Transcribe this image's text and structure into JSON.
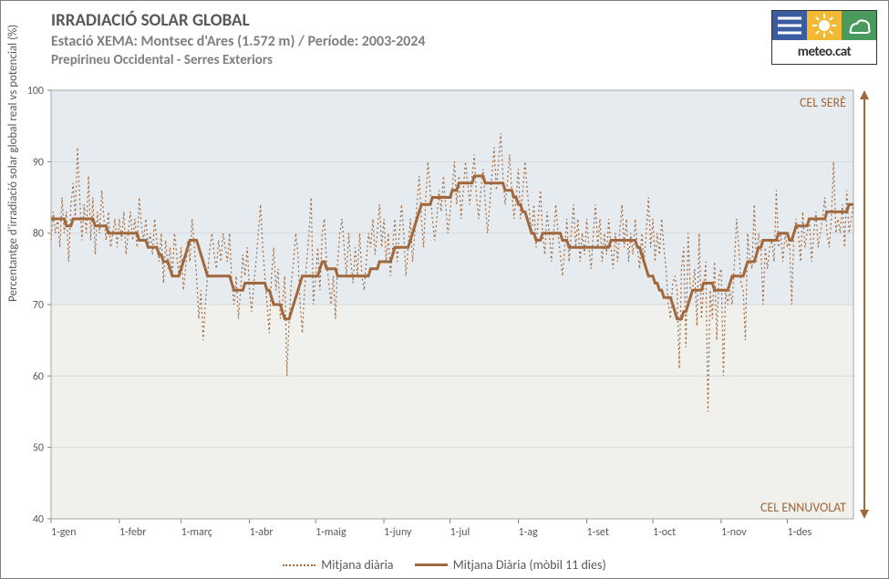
{
  "header": {
    "title": "IRRADIACIÓ SOLAR GLOBAL",
    "subtitle": "Estació XEMA: Montsec d'Ares (1.572 m) /  Període: 2003-2024",
    "subtitle2": "Prepirineu Occidental - Serres Exteriors"
  },
  "logo": {
    "text": "meteo.cat",
    "colors": [
      "#3b5ca0",
      "#f4b934",
      "#4a9a5e"
    ]
  },
  "chart": {
    "type": "line",
    "y_axis": {
      "label": "Percentantge d'irradiació solar global real vs potencial (%)",
      "min": 40,
      "max": 100,
      "tick_step": 10,
      "label_fontsize": 13,
      "tick_fontsize": 12,
      "tick_color": "#595959"
    },
    "x_axis": {
      "ticks": [
        "1-gen",
        "1-febr",
        "1-març",
        "1-abr",
        "1-maig",
        "1-juny",
        "1-jul",
        "1-ag",
        "1-set",
        "1-oct",
        "1-nov",
        "1-des"
      ],
      "tick_fontsize": 12,
      "tick_color": "#595959"
    },
    "plot": {
      "background_upper": "#e6ebf0",
      "background_lower": "#f0f0ec",
      "split_y": 70,
      "border_color": "#a6a6a6",
      "grid_color": "#d9d9d9"
    },
    "annotations": {
      "top_right": "CEL SERÈ",
      "bottom_right": "CEL ENNUVOLAT",
      "color": "#a0683c"
    },
    "arrow": {
      "color": "#a0683c",
      "width": 2
    },
    "series": [
      {
        "name": "Mitjana diària",
        "style": "dotted",
        "color": "#a0683c",
        "line_width": 1.2,
        "data": [
          79,
          83,
          80,
          82,
          78,
          85,
          80,
          83,
          76,
          84,
          87,
          82,
          92,
          85,
          79,
          84,
          80,
          88,
          79,
          85,
          77,
          83,
          80,
          86,
          82,
          79,
          83,
          78,
          80,
          82,
          78,
          82,
          79,
          83,
          77,
          80,
          83,
          79,
          82,
          78,
          85,
          81,
          79,
          82,
          78,
          80,
          77,
          82,
          79,
          76,
          80,
          73,
          79,
          75,
          78,
          74,
          80,
          77,
          74,
          78,
          72,
          75,
          79,
          76,
          82,
          78,
          74,
          68,
          72,
          65,
          70,
          74,
          78,
          80,
          77,
          75,
          79,
          76,
          80,
          78,
          76,
          80,
          73,
          70,
          74,
          68,
          72,
          77,
          74,
          78,
          72,
          69,
          73,
          76,
          80,
          84,
          78,
          74,
          70,
          66,
          74,
          78,
          72,
          75,
          68,
          70,
          74,
          60,
          68,
          73,
          76,
          80,
          77,
          70,
          66,
          72,
          76,
          80,
          85,
          70,
          74,
          78,
          72,
          80,
          82,
          76,
          73,
          70,
          74,
          68,
          76,
          80,
          82,
          78,
          74,
          80,
          76,
          73,
          78,
          74,
          80,
          74,
          72,
          76,
          80,
          78,
          82,
          77,
          80,
          84,
          78,
          82,
          76,
          80,
          74,
          78,
          82,
          76,
          80,
          84,
          80,
          74,
          78,
          82,
          76,
          80,
          84,
          88,
          82,
          78,
          85,
          90,
          86,
          82,
          79,
          82,
          86,
          83,
          88,
          84,
          80,
          83,
          86,
          90,
          84,
          88,
          82,
          86,
          90,
          87,
          84,
          88,
          91,
          85,
          82,
          86,
          89,
          84,
          80,
          84,
          88,
          92,
          86,
          90,
          94,
          88,
          84,
          87,
          91,
          86,
          82,
          85,
          89,
          82,
          86,
          90,
          86,
          83,
          80,
          84,
          78,
          82,
          86,
          80,
          77,
          83,
          80,
          76,
          80,
          84,
          80,
          77,
          74,
          78,
          82,
          76,
          80,
          84,
          78,
          82,
          76,
          80,
          77,
          82,
          78,
          75,
          80,
          84,
          78,
          82,
          76,
          80,
          77,
          82,
          78,
          75,
          80,
          76,
          80,
          84,
          78,
          82,
          76,
          80,
          77,
          82,
          78,
          75,
          80,
          76,
          80,
          85,
          78,
          82,
          76,
          80,
          77,
          82,
          78,
          75,
          70,
          68,
          73,
          74,
          72,
          61,
          75,
          78,
          64,
          80,
          72,
          72,
          75,
          67,
          80,
          68,
          72,
          76,
          55,
          72,
          68,
          76,
          65,
          74,
          75,
          60,
          72,
          70,
          72,
          70,
          76,
          82,
          78,
          73,
          72,
          65,
          80,
          76,
          75,
          84,
          76,
          80,
          78,
          70,
          78,
          75,
          78,
          79,
          76,
          86,
          78,
          80,
          76,
          80,
          78,
          79,
          70,
          80,
          82,
          80,
          76,
          83,
          78,
          80,
          82,
          76,
          80,
          83,
          78,
          80,
          82,
          85,
          80,
          78,
          82,
          90,
          80,
          82,
          80,
          84,
          78,
          86,
          80,
          82,
          84
        ]
      },
      {
        "name": "Mitjana Diària (mòbil 11 dies)",
        "style": "solid",
        "color": "#a0683c",
        "line_width": 3,
        "data": [
          82,
          82,
          82,
          82,
          82,
          82,
          82,
          81,
          81,
          81,
          82,
          82,
          82,
          82,
          82,
          82,
          82,
          82,
          82,
          82,
          81,
          81,
          81,
          81,
          81,
          81,
          80,
          80,
          80,
          80,
          80,
          80,
          80,
          80,
          80,
          80,
          80,
          80,
          80,
          80,
          79,
          79,
          79,
          79,
          78,
          78,
          78,
          78,
          78,
          77,
          77,
          76,
          76,
          76,
          75,
          74,
          74,
          74,
          74,
          75,
          76,
          77,
          78,
          79,
          79,
          79,
          79,
          78,
          77,
          76,
          75,
          74,
          74,
          74,
          74,
          74,
          74,
          74,
          74,
          74,
          74,
          74,
          73,
          72,
          72,
          72,
          72,
          72,
          73,
          73,
          73,
          73,
          73,
          73,
          73,
          73,
          73,
          73,
          72,
          72,
          71,
          70,
          70,
          70,
          70,
          69,
          68,
          68,
          68,
          69,
          70,
          71,
          72,
          73,
          74,
          74,
          74,
          74,
          74,
          74,
          74,
          74,
          75,
          76,
          76,
          75,
          75,
          75,
          75,
          75,
          74,
          74,
          74,
          74,
          74,
          74,
          74,
          74,
          74,
          74,
          74,
          74,
          74,
          74,
          74,
          75,
          75,
          75,
          75,
          76,
          76,
          76,
          76,
          76,
          76,
          77,
          78,
          78,
          78,
          78,
          78,
          78,
          78,
          79,
          80,
          81,
          82,
          83,
          84,
          84,
          84,
          84,
          84,
          85,
          85,
          85,
          85,
          85,
          85,
          85,
          85,
          85,
          86,
          86,
          86,
          87,
          87,
          87,
          87,
          87,
          87,
          87,
          88,
          88,
          88,
          88,
          88,
          87,
          87,
          87,
          87,
          87,
          87,
          87,
          87,
          87,
          86,
          86,
          86,
          86,
          85,
          85,
          84,
          84,
          83,
          83,
          82,
          81,
          80,
          80,
          79,
          79,
          79,
          80,
          80,
          80,
          80,
          80,
          80,
          80,
          80,
          80,
          79,
          79,
          79,
          78,
          78,
          78,
          78,
          78,
          78,
          78,
          78,
          78,
          78,
          78,
          78,
          78,
          78,
          78,
          78,
          78,
          78,
          78,
          79,
          79,
          79,
          79,
          79,
          79,
          79,
          79,
          79,
          79,
          79,
          79,
          78,
          78,
          77,
          76,
          75,
          74,
          74,
          74,
          73,
          73,
          72,
          72,
          71,
          71,
          71,
          71,
          70,
          69,
          68,
          68,
          68,
          69,
          69,
          70,
          71,
          72,
          72,
          72,
          72,
          72,
          73,
          73,
          73,
          73,
          73,
          72,
          72,
          72,
          72,
          72,
          72,
          72,
          73,
          74,
          74,
          74,
          74,
          74,
          74,
          75,
          76,
          76,
          76,
          76,
          77,
          78,
          78,
          79,
          79,
          79,
          79,
          79,
          79,
          79,
          80,
          80,
          80,
          80,
          80,
          79,
          79,
          80,
          81,
          81,
          81,
          81,
          81,
          81,
          82,
          82,
          82,
          82,
          82,
          82,
          82,
          82,
          83,
          83,
          83,
          83,
          83,
          83,
          83,
          83,
          83,
          83,
          84,
          84,
          84
        ]
      }
    ],
    "legend": {
      "items": [
        "Mitjana diària",
        "Mitjana Diària (mòbil 11 dies)"
      ],
      "fontsize": 14,
      "color": "#595959"
    }
  }
}
